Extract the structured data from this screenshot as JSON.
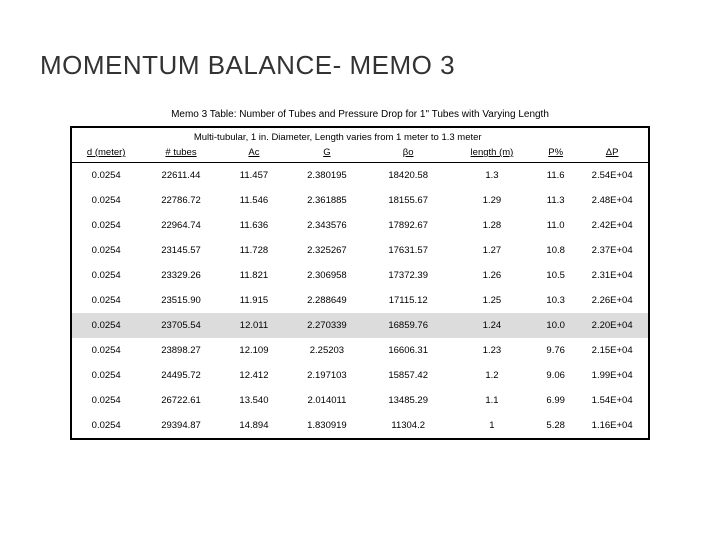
{
  "title": "MOMENTUM BALANCE- MEMO 3",
  "caption": "Memo 3 Table: Number of Tubes and Pressure Drop for 1\" Tubes with Varying Length",
  "super_header": "Multi-tubular, 1 in. Diameter, Length varies from 1 meter to 1.3 meter",
  "columns": [
    "d (meter)",
    "# tubes",
    "Ac",
    "G",
    "βo",
    "length (m)",
    "P%",
    "ΔP"
  ],
  "rows": [
    {
      "d": "0.0254",
      "tubes": "22611.44",
      "ac": "11.457",
      "g": "2.380195",
      "bo": "18420.58",
      "len": "1.3",
      "p": "11.6",
      "dp": "2.54E+04"
    },
    {
      "d": "0.0254",
      "tubes": "22786.72",
      "ac": "11.546",
      "g": "2.361885",
      "bo": "18155.67",
      "len": "1.29",
      "p": "11.3",
      "dp": "2.48E+04"
    },
    {
      "d": "0.0254",
      "tubes": "22964.74",
      "ac": "11.636",
      "g": "2.343576",
      "bo": "17892.67",
      "len": "1.28",
      "p": "11.0",
      "dp": "2.42E+04"
    },
    {
      "d": "0.0254",
      "tubes": "23145.57",
      "ac": "11.728",
      "g": "2.325267",
      "bo": "17631.57",
      "len": "1.27",
      "p": "10.8",
      "dp": "2.37E+04"
    },
    {
      "d": "0.0254",
      "tubes": "23329.26",
      "ac": "11.821",
      "g": "2.306958",
      "bo": "17372.39",
      "len": "1.26",
      "p": "10.5",
      "dp": "2.31E+04"
    },
    {
      "d": "0.0254",
      "tubes": "23515.90",
      "ac": "11.915",
      "g": "2.288649",
      "bo": "17115.12",
      "len": "1.25",
      "p": "10.3",
      "dp": "2.26E+04"
    },
    {
      "d": "0.0254",
      "tubes": "23705.54",
      "ac": "12.011",
      "g": "2.270339",
      "bo": "16859.76",
      "len": "1.24",
      "p": "10.0",
      "dp": "2.20E+04",
      "highlight": true
    },
    {
      "d": "0.0254",
      "tubes": "23898.27",
      "ac": "12.109",
      "g": "2.25203",
      "bo": "16606.31",
      "len": "1.23",
      "p": "9.76",
      "dp": "2.15E+04"
    },
    {
      "d": "0.0254",
      "tubes": "24495.72",
      "ac": "12.412",
      "g": "2.197103",
      "bo": "15857.42",
      "len": "1.2",
      "p": "9.06",
      "dp": "1.99E+04"
    },
    {
      "d": "0.0254",
      "tubes": "26722.61",
      "ac": "13.540",
      "g": "2.014011",
      "bo": "13485.29",
      "len": "1.1",
      "p": "6.99",
      "dp": "1.54E+04"
    },
    {
      "d": "0.0254",
      "tubes": "29394.87",
      "ac": "14.894",
      "g": "1.830919",
      "bo": "11304.2",
      "len": "1",
      "p": "5.28",
      "dp": "1.16E+04"
    }
  ]
}
